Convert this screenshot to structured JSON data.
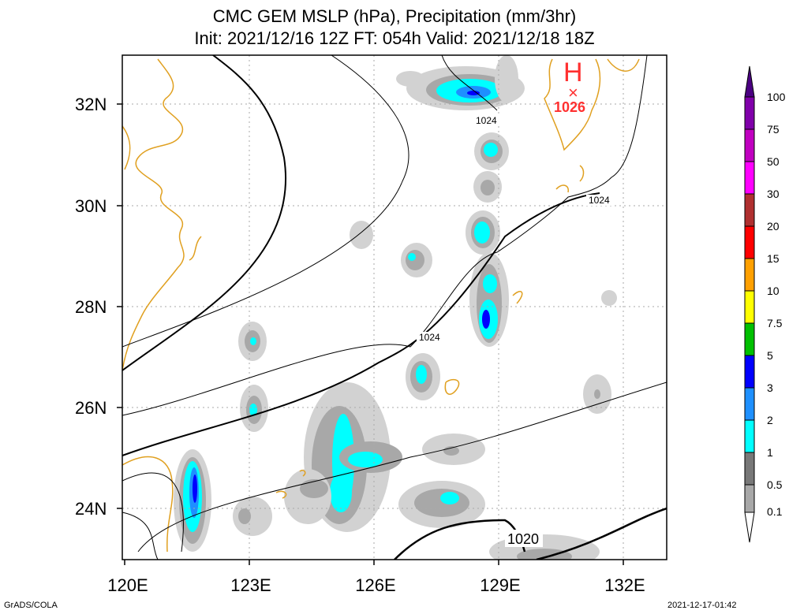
{
  "title": {
    "line1": "CMC GEM MSLP (hPa), Precipitation (mm/3hr)",
    "line2": "Init: 2021/12/16 12Z  FT: 054h  Valid: 2021/12/18 18Z"
  },
  "axes": {
    "lat_labels": [
      "32N",
      "30N",
      "28N",
      "26N",
      "24N"
    ],
    "lon_labels": [
      "120E",
      "123E",
      "126E",
      "129E",
      "132E"
    ]
  },
  "isobar_labels": [
    "1024",
    "1024",
    "1024",
    "1020"
  ],
  "high_center": {
    "symbol": "H",
    "marker": "×",
    "value": "1026"
  },
  "colorbar": {
    "labels": [
      "100",
      "75",
      "50",
      "30",
      "20",
      "15",
      "10",
      "7.5",
      "5",
      "3",
      "2",
      "1",
      "0.5",
      "0.1"
    ],
    "colors": [
      "#8000aa",
      "#c000c0",
      "#ff00ff",
      "#b03030",
      "#ff0000",
      "#ffa000",
      "#ffff00",
      "#00c000",
      "#0000ff",
      "#1e90ff",
      "#00ffff",
      "#787878",
      "#a8a8a8",
      "#d2d2d2"
    ]
  },
  "footer": {
    "left": "GrADS/COLA",
    "right": "2021-12-17-01:42"
  },
  "colors": {
    "coastline": "#e0a020",
    "isobar": "#000000",
    "grid": "#aaaaaa",
    "high_label": "#ff3030"
  }
}
